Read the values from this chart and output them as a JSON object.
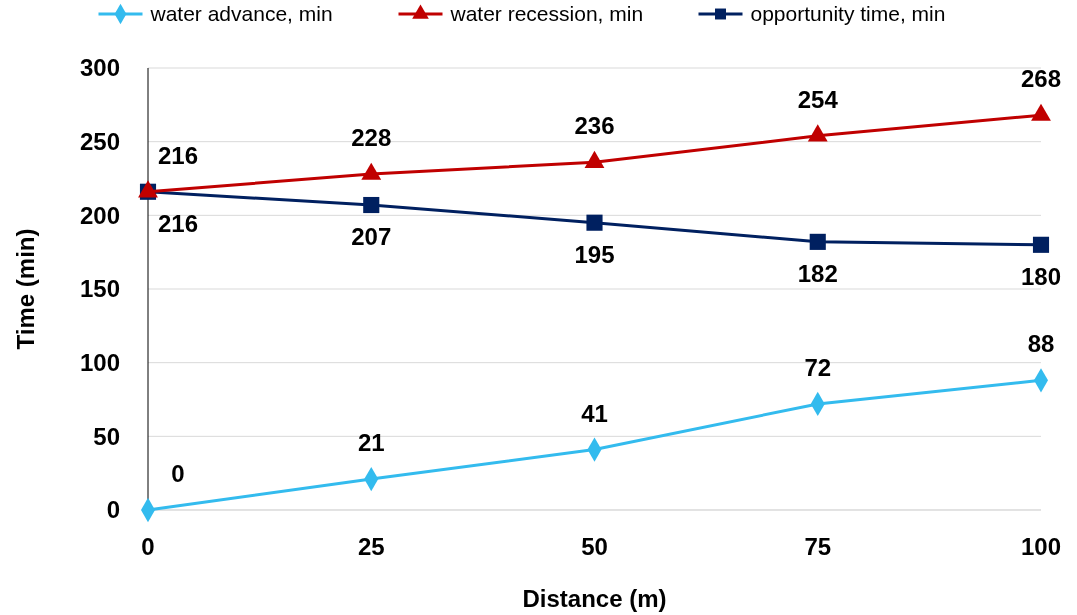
{
  "chart_data": {
    "type": "line",
    "xlabel": "Distance (m)",
    "ylabel": "Time (min)",
    "x": [
      0,
      25,
      50,
      75,
      100
    ],
    "xlim": [
      0,
      100
    ],
    "xticks": [
      0,
      25,
      50,
      75,
      100
    ],
    "ylim": [
      0,
      300
    ],
    "yticks": [
      0,
      50,
      100,
      150,
      200,
      250,
      300
    ],
    "grid": "y",
    "legend": "top",
    "data_labels": true,
    "line_style": "solid",
    "series": [
      {
        "name": "water advance, min",
        "color": "#33bbee",
        "marker": "diamond",
        "values": [
          0,
          21,
          41,
          72,
          88
        ]
      },
      {
        "name": "water recession, min",
        "color": "#c00000",
        "marker": "triangle",
        "values": [
          216,
          228,
          236,
          254,
          268
        ]
      },
      {
        "name": "opportunity time, min",
        "color": "#002060",
        "marker": "square",
        "values": [
          216,
          207,
          195,
          182,
          180
        ]
      }
    ]
  }
}
